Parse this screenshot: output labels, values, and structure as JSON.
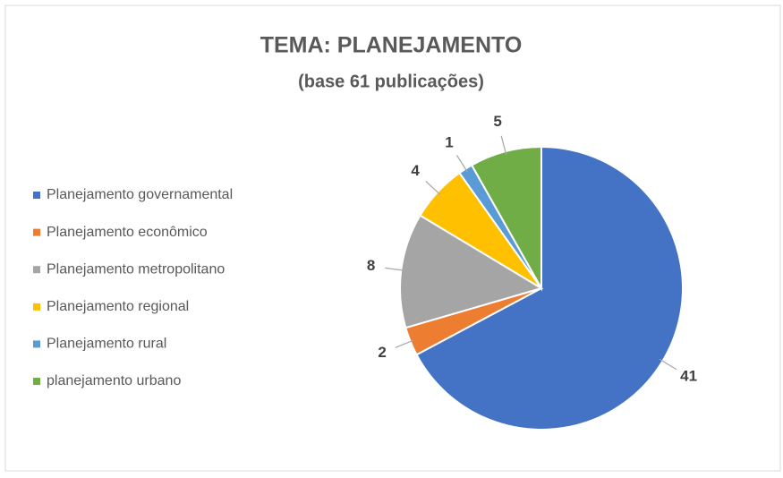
{
  "chart_data": {
    "type": "pie",
    "title": "TEMA: PLANEJAMENTO",
    "subtitle": "(base 61 publicações)",
    "categories": [
      "Planejamento governamental",
      "Planejamento econômico",
      "Planejamento metropolitano",
      "Planejamento regional",
      "Planejamento rural",
      "planejamento urbano"
    ],
    "values": [
      41,
      2,
      8,
      4,
      1,
      5
    ],
    "colors": [
      "#4472c4",
      "#ed7d31",
      "#a5a5a5",
      "#ffc000",
      "#5b9bd5",
      "#70ad47"
    ],
    "legend": "left"
  }
}
